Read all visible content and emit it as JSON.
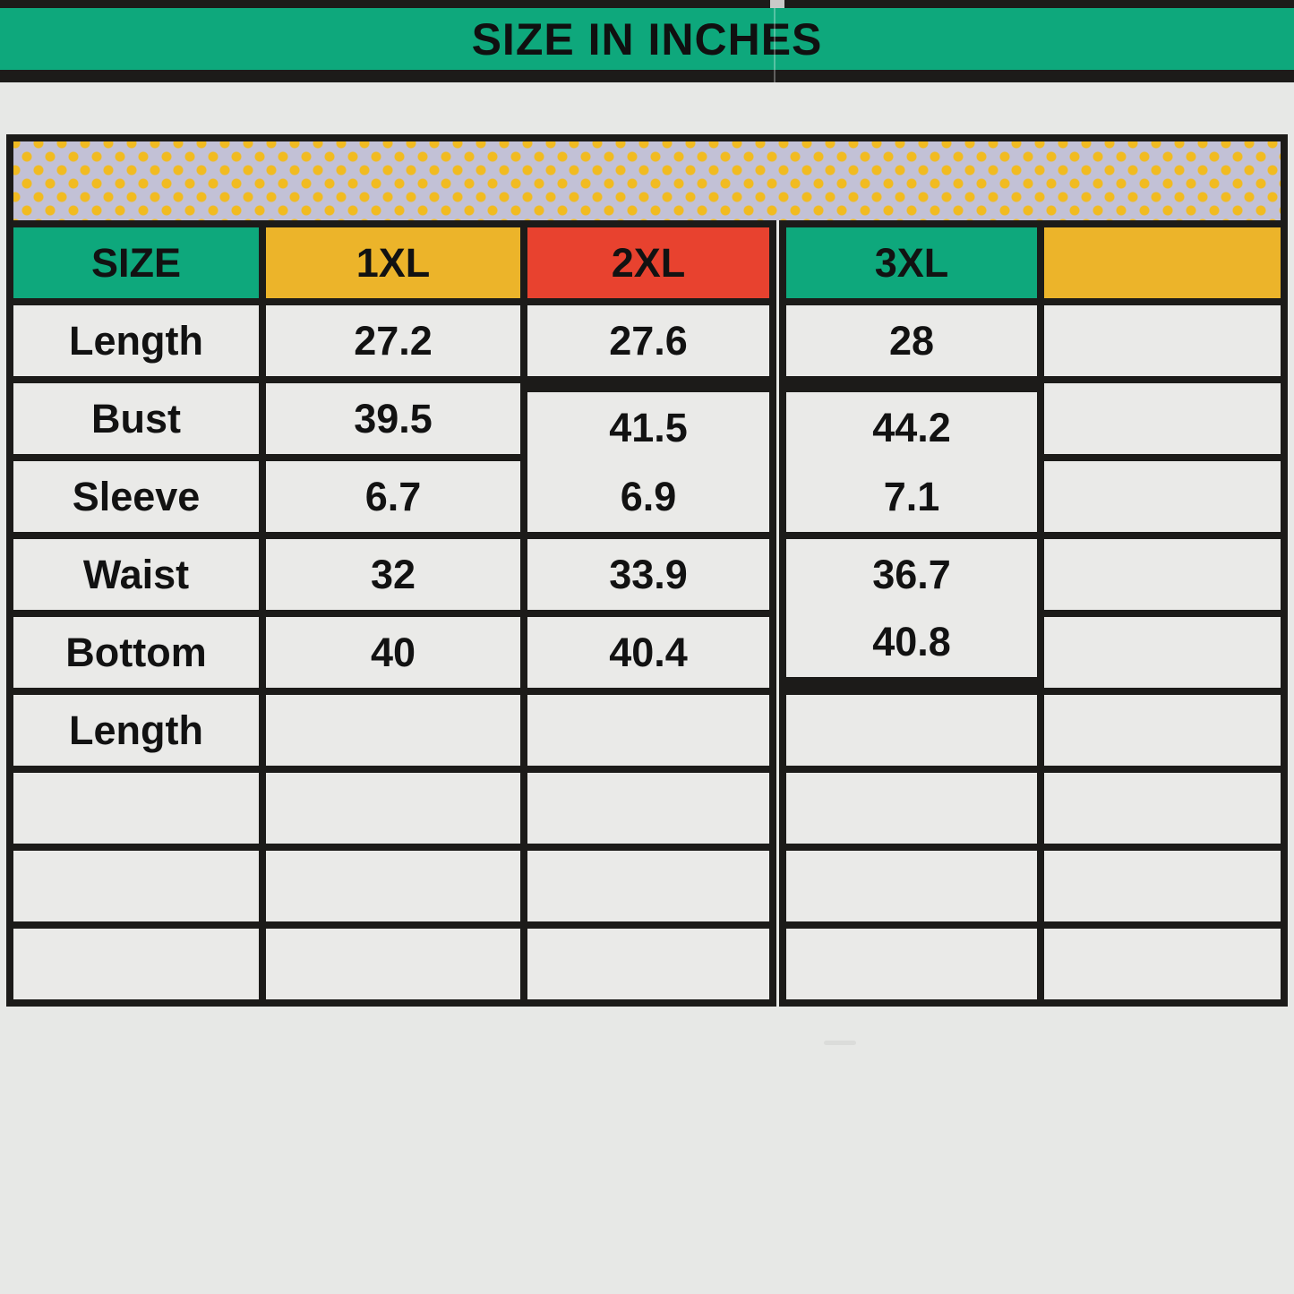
{
  "banner": {
    "title": "SIZE IN INCHES"
  },
  "palette": {
    "green": "#0ea87c",
    "yellow": "#ecb42a",
    "red": "#e8422f",
    "black": "#1c1b19",
    "cell_gray": "#eaeae8",
    "page_gray": "#e7e8e6",
    "band_lavender": "#c2c1d6",
    "band_dot_yellow": "#f1bb21"
  },
  "table": {
    "header": {
      "cells": [
        "SIZE",
        "1XL",
        "2XL",
        "3XL",
        ""
      ]
    },
    "rows": [
      {
        "label": "Length",
        "values": [
          "27.2",
          "27.6",
          "28",
          ""
        ]
      },
      {
        "label": "Bust",
        "values": [
          "39.5",
          "41.5",
          "44.2",
          ""
        ]
      },
      {
        "label": "Sleeve",
        "values": [
          "6.7",
          "6.9",
          "7.1",
          ""
        ]
      },
      {
        "label": "Waist",
        "values": [
          "32",
          "33.9",
          "36.7",
          ""
        ]
      },
      {
        "label": "Bottom",
        "values": [
          "40",
          "40.4",
          "40.8",
          ""
        ]
      },
      {
        "label": "Length",
        "values": [
          "",
          "",
          "",
          ""
        ]
      },
      {
        "label": "",
        "values": [
          "",
          "",
          "",
          ""
        ]
      },
      {
        "label": "",
        "values": [
          "",
          "",
          "",
          ""
        ]
      },
      {
        "label": "",
        "values": [
          "",
          "",
          "",
          ""
        ]
      }
    ]
  }
}
